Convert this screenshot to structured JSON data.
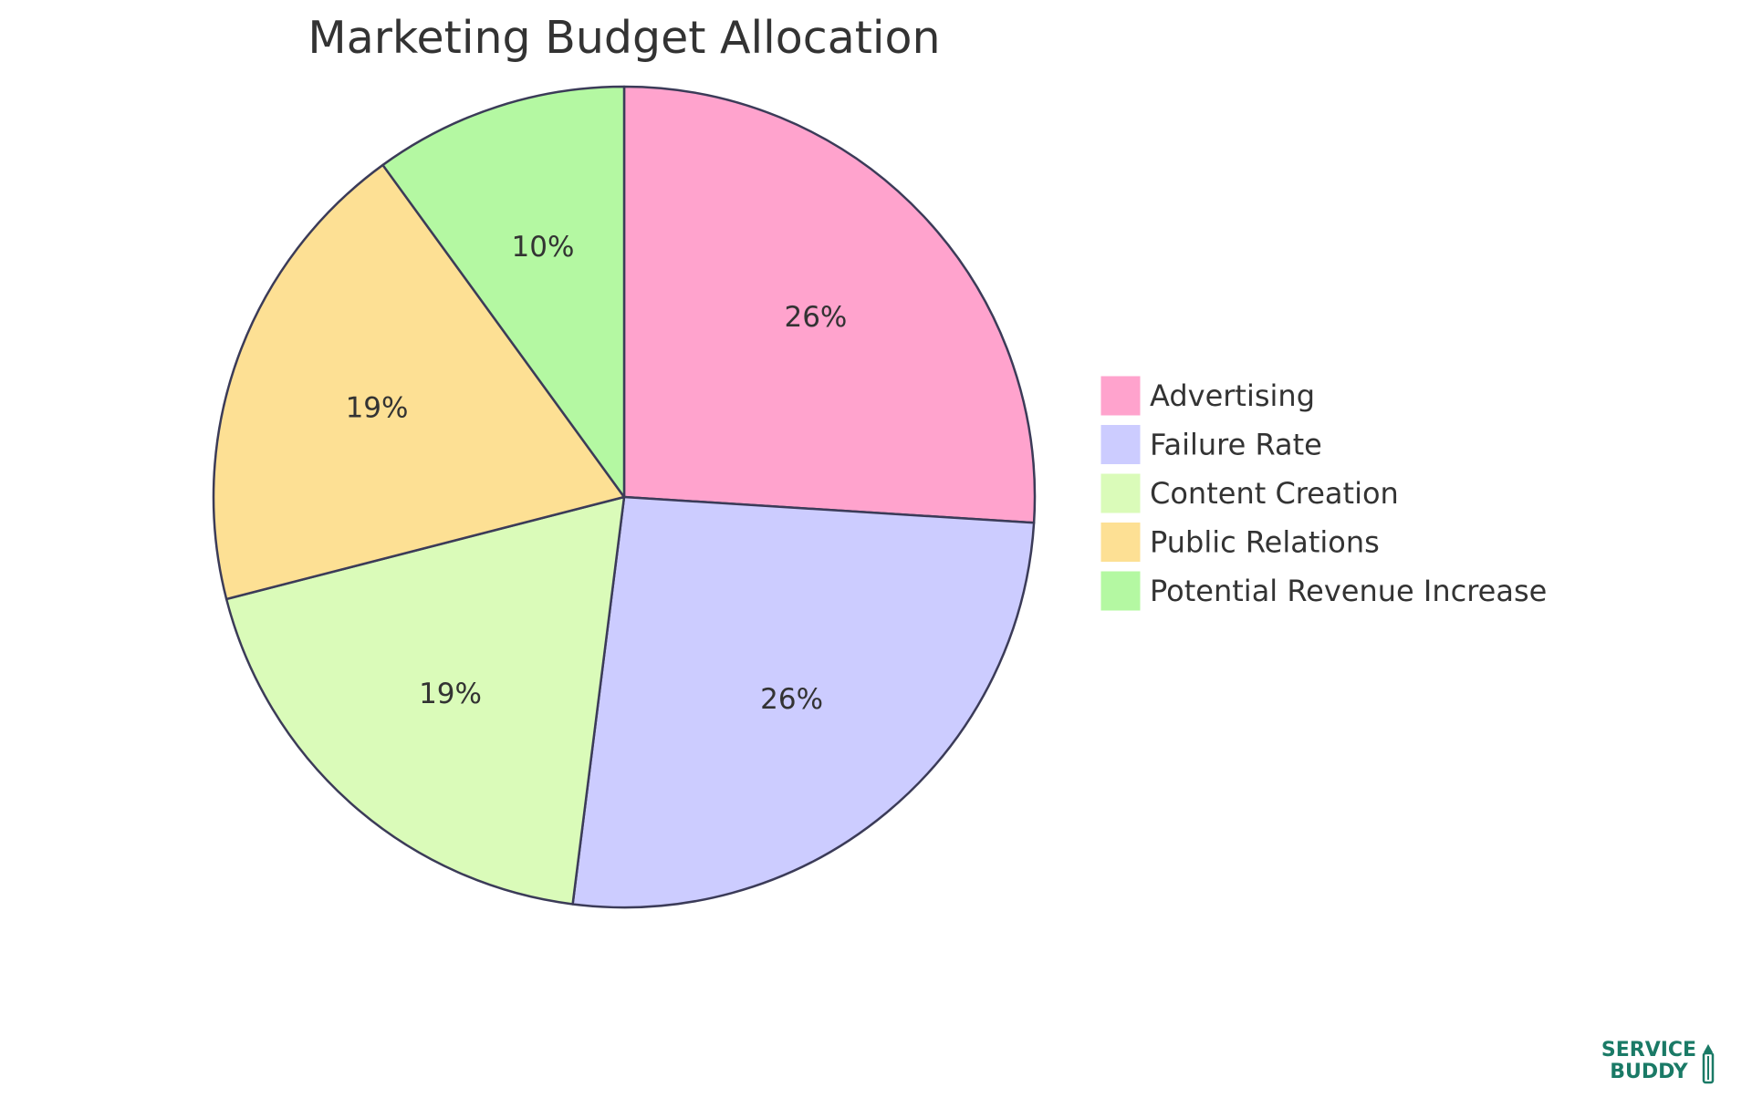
{
  "chart_data": {
    "type": "pie",
    "title": "Marketing Budget Allocation",
    "slices": [
      {
        "label": "Advertising",
        "value": 26,
        "display": "26%",
        "color": "#ffa3cd"
      },
      {
        "label": "Failure Rate",
        "value": 26,
        "display": "26%",
        "color": "#ccccff"
      },
      {
        "label": "Content Creation",
        "value": 19,
        "display": "19%",
        "color": "#dafbb9"
      },
      {
        "label": "Public Relations",
        "value": 19,
        "display": "19%",
        "color": "#fde094"
      },
      {
        "label": "Potential Revenue Increase",
        "value": 10,
        "display": "10%",
        "color": "#b4f8a2"
      }
    ],
    "legend_position": "right",
    "stroke_color": "#3b3b58"
  },
  "brand": {
    "line1": "SERVICE",
    "line2": "BUDDY",
    "color": "#1a7a66"
  }
}
